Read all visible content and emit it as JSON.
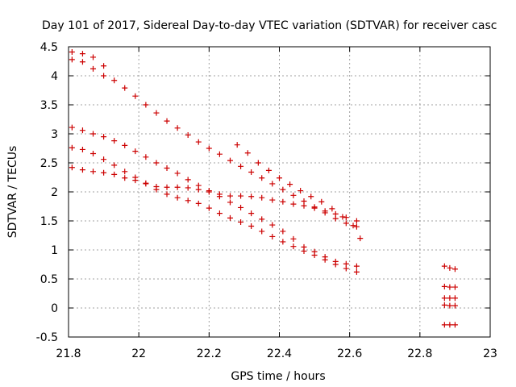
{
  "chart_data": {
    "type": "scatter",
    "title": "Day 101 of 2017, Sidereal Day-to-day VTEC variation (SDTVAR) for receiver casc",
    "xlabel": "GPS time / hours",
    "ylabel": "SDTVAR / TECUs",
    "xlim": [
      21.8,
      23.0
    ],
    "ylim": [
      -0.5,
      4.5
    ],
    "x_ticks": [
      21.8,
      22.0,
      22.2,
      22.4,
      22.6,
      22.8,
      23.0
    ],
    "x_tick_labels": [
      "21.8",
      "22",
      "22.2",
      "22.4",
      "22.6",
      "22.8",
      "23"
    ],
    "y_ticks": [
      -0.5,
      0,
      0.5,
      1,
      1.5,
      2,
      2.5,
      3,
      3.5,
      4,
      4.5
    ],
    "y_tick_labels": [
      "-0.5",
      "0",
      "0.5",
      "1",
      "1.5",
      "2",
      "2.5",
      "3",
      "3.5",
      "4",
      "4.5"
    ],
    "grid": true,
    "marker": "+",
    "colors": {
      "points": "#cc0000",
      "grid": "#a0a0a0",
      "axis": "#000000"
    },
    "series": [
      {
        "name": "trace-a",
        "points": [
          [
            21.81,
            4.41
          ],
          [
            21.84,
            4.38
          ],
          [
            21.87,
            4.32
          ],
          [
            21.9,
            4.17
          ]
        ]
      },
      {
        "name": "trace-b",
        "points": [
          [
            21.81,
            4.28
          ],
          [
            21.84,
            4.24
          ],
          [
            21.87,
            4.12
          ],
          [
            21.9,
            4.0
          ],
          [
            21.93,
            3.92
          ],
          [
            21.96,
            3.79
          ],
          [
            21.99,
            3.65
          ],
          [
            22.02,
            3.5
          ],
          [
            22.05,
            3.36
          ],
          [
            22.08,
            3.22
          ],
          [
            22.11,
            3.1
          ],
          [
            22.14,
            2.98
          ],
          [
            22.17,
            2.86
          ],
          [
            22.2,
            2.75
          ],
          [
            22.23,
            2.65
          ],
          [
            22.26,
            2.54
          ],
          [
            22.29,
            2.44
          ],
          [
            22.32,
            2.34
          ],
          [
            22.35,
            2.24
          ],
          [
            22.38,
            2.14
          ],
          [
            22.41,
            2.04
          ],
          [
            22.44,
            1.94
          ],
          [
            22.47,
            1.84
          ],
          [
            22.5,
            1.74
          ],
          [
            22.53,
            1.64
          ],
          [
            22.56,
            1.54
          ],
          [
            22.59,
            1.46
          ],
          [
            22.62,
            1.4
          ]
        ]
      },
      {
        "name": "trace-c",
        "points": [
          [
            21.81,
            3.11
          ],
          [
            21.84,
            3.06
          ],
          [
            21.87,
            3.0
          ],
          [
            21.9,
            2.95
          ],
          [
            21.93,
            2.88
          ],
          [
            21.96,
            2.8
          ],
          [
            21.99,
            2.7
          ],
          [
            22.02,
            2.6
          ],
          [
            22.05,
            2.5
          ],
          [
            22.08,
            2.41
          ],
          [
            22.11,
            2.32
          ],
          [
            22.14,
            2.21
          ],
          [
            22.17,
            2.11
          ],
          [
            22.2,
            2.02
          ],
          [
            22.23,
            1.92
          ],
          [
            22.26,
            1.82
          ],
          [
            22.29,
            1.73
          ],
          [
            22.32,
            1.63
          ],
          [
            22.35,
            1.53
          ],
          [
            22.38,
            1.43
          ],
          [
            22.41,
            1.32
          ],
          [
            22.44,
            1.19
          ],
          [
            22.47,
            1.05
          ],
          [
            22.5,
            0.97
          ],
          [
            22.53,
            0.88
          ],
          [
            22.56,
            0.8
          ],
          [
            22.59,
            0.76
          ],
          [
            22.62,
            0.72
          ]
        ]
      },
      {
        "name": "trace-d",
        "points": [
          [
            21.81,
            2.76
          ],
          [
            21.84,
            2.73
          ],
          [
            21.87,
            2.66
          ],
          [
            21.9,
            2.56
          ],
          [
            21.93,
            2.46
          ],
          [
            21.96,
            2.35
          ],
          [
            21.99,
            2.25
          ],
          [
            22.02,
            2.15
          ],
          [
            22.05,
            2.09
          ],
          [
            22.08,
            2.08
          ],
          [
            22.11,
            2.08
          ],
          [
            22.14,
            2.07
          ],
          [
            22.17,
            2.04
          ],
          [
            22.2,
            2.0
          ],
          [
            22.23,
            1.96
          ],
          [
            22.26,
            1.93
          ],
          [
            22.29,
            1.93
          ],
          [
            22.32,
            1.92
          ],
          [
            22.35,
            1.9
          ],
          [
            22.38,
            1.86
          ],
          [
            22.41,
            1.83
          ],
          [
            22.44,
            1.79
          ],
          [
            22.47,
            1.76
          ],
          [
            22.5,
            1.72
          ],
          [
            22.53,
            1.67
          ],
          [
            22.56,
            1.62
          ],
          [
            22.59,
            1.56
          ],
          [
            22.62,
            1.5
          ]
        ]
      },
      {
        "name": "trace-e",
        "points": [
          [
            21.81,
            2.42
          ],
          [
            21.84,
            2.38
          ],
          [
            21.87,
            2.35
          ],
          [
            21.9,
            2.33
          ],
          [
            21.93,
            2.3
          ],
          [
            21.96,
            2.24
          ],
          [
            21.99,
            2.2
          ],
          [
            22.02,
            2.14
          ],
          [
            22.05,
            2.04
          ],
          [
            22.08,
            1.96
          ],
          [
            22.11,
            1.9
          ],
          [
            22.14,
            1.85
          ],
          [
            22.17,
            1.8
          ],
          [
            22.2,
            1.72
          ],
          [
            22.23,
            1.63
          ],
          [
            22.26,
            1.55
          ],
          [
            22.29,
            1.48
          ],
          [
            22.32,
            1.41
          ],
          [
            22.35,
            1.32
          ],
          [
            22.38,
            1.23
          ],
          [
            22.41,
            1.14
          ],
          [
            22.44,
            1.06
          ],
          [
            22.47,
            0.98
          ],
          [
            22.5,
            0.91
          ],
          [
            22.53,
            0.83
          ],
          [
            22.56,
            0.75
          ],
          [
            22.59,
            0.68
          ],
          [
            22.62,
            0.62
          ]
        ]
      },
      {
        "name": "trace-f",
        "points": [
          [
            22.28,
            2.81
          ],
          [
            22.31,
            2.67
          ],
          [
            22.34,
            2.5
          ],
          [
            22.37,
            2.37
          ],
          [
            22.4,
            2.24
          ],
          [
            22.43,
            2.13
          ],
          [
            22.46,
            2.02
          ],
          [
            22.49,
            1.92
          ],
          [
            22.52,
            1.83
          ],
          [
            22.55,
            1.71
          ],
          [
            22.58,
            1.57
          ],
          [
            22.61,
            1.42
          ],
          [
            22.63,
            1.2
          ]
        ]
      },
      {
        "name": "trace-g",
        "points": [
          [
            22.87,
            0.72
          ],
          [
            22.885,
            0.69
          ],
          [
            22.9,
            0.67
          ]
        ]
      },
      {
        "name": "trace-h",
        "points": [
          [
            22.87,
            0.37
          ],
          [
            22.885,
            0.36
          ],
          [
            22.9,
            0.36
          ]
        ]
      },
      {
        "name": "trace-i",
        "points": [
          [
            22.87,
            0.17
          ],
          [
            22.885,
            0.17
          ],
          [
            22.9,
            0.17
          ]
        ]
      },
      {
        "name": "trace-j",
        "points": [
          [
            22.87,
            0.05
          ],
          [
            22.885,
            0.04
          ],
          [
            22.9,
            0.04
          ]
        ]
      },
      {
        "name": "trace-k",
        "points": [
          [
            22.87,
            -0.29
          ],
          [
            22.885,
            -0.29
          ],
          [
            22.9,
            -0.29
          ]
        ]
      }
    ]
  }
}
